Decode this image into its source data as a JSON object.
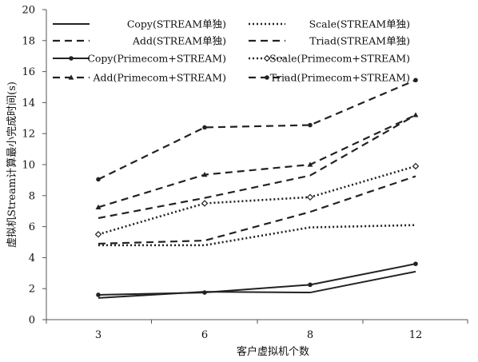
{
  "chart_data": {
    "type": "line",
    "categories": [
      "3",
      "6",
      "8",
      "12"
    ],
    "xlabel": "客户虚拟机个数",
    "ylabel": "虚拟机Stream计算最小完成时间(s)",
    "ylim": [
      0,
      20
    ],
    "yticks": [
      0,
      2,
      4,
      6,
      8,
      10,
      12,
      14,
      16,
      18,
      20
    ],
    "grid": false,
    "legend_position": "top",
    "series": [
      {
        "name": "Copy(STREAM单独)",
        "values": [
          1.4,
          1.8,
          1.75,
          3.1
        ],
        "dash": "solid",
        "marker": "none",
        "color": "#222222"
      },
      {
        "name": "Scale(STREAM单独)",
        "values": [
          4.8,
          4.8,
          5.95,
          6.1
        ],
        "dash": "dot",
        "marker": "none",
        "color": "#222222"
      },
      {
        "name": "Add(STREAM单独)",
        "values": [
          6.55,
          7.85,
          9.3,
          13.2
        ],
        "dash": "dash",
        "marker": "none",
        "color": "#222222"
      },
      {
        "name": "Triad(STREAM单独)",
        "values": [
          4.9,
          5.1,
          6.95,
          9.25
        ],
        "dash": "dash",
        "marker": "none",
        "color": "#222222"
      },
      {
        "name": "Copy(Primecom+STREAM)",
        "values": [
          1.6,
          1.75,
          2.25,
          3.6
        ],
        "dash": "solid",
        "marker": "circle",
        "color": "#222222"
      },
      {
        "name": "Scale(Primecom+STREAM)",
        "values": [
          5.5,
          7.5,
          7.9,
          9.9
        ],
        "dash": "dot",
        "marker": "diamond-open",
        "color": "#222222"
      },
      {
        "name": "Add(Primecom+STREAM)",
        "values": [
          7.25,
          9.35,
          10.0,
          13.2
        ],
        "dash": "dash",
        "marker": "triangle",
        "color": "#222222"
      },
      {
        "name": "Triad(Primecom+STREAM)",
        "values": [
          9.05,
          12.4,
          12.55,
          15.45
        ],
        "dash": "dash",
        "marker": "circle",
        "color": "#222222"
      }
    ]
  }
}
